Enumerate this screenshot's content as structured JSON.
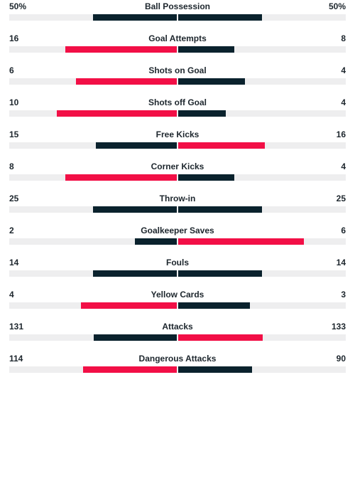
{
  "colors": {
    "leading": "#f20f46",
    "trailing": "#0a222d",
    "track": "#eeeeef"
  },
  "stats": [
    {
      "label": "Ball Possession",
      "home": "50%",
      "away": "50%",
      "home_value": 50,
      "away_value": 50
    },
    {
      "label": "Goal Attempts",
      "home": "16",
      "away": "8",
      "home_value": 16,
      "away_value": 8
    },
    {
      "label": "Shots on Goal",
      "home": "6",
      "away": "4",
      "home_value": 6,
      "away_value": 4
    },
    {
      "label": "Shots off Goal",
      "home": "10",
      "away": "4",
      "home_value": 10,
      "away_value": 4
    },
    {
      "label": "Free Kicks",
      "home": "15",
      "away": "16",
      "home_value": 15,
      "away_value": 16
    },
    {
      "label": "Corner Kicks",
      "home": "8",
      "away": "4",
      "home_value": 8,
      "away_value": 4
    },
    {
      "label": "Throw-in",
      "home": "25",
      "away": "25",
      "home_value": 25,
      "away_value": 25
    },
    {
      "label": "Goalkeeper Saves",
      "home": "2",
      "away": "6",
      "home_value": 2,
      "away_value": 6
    },
    {
      "label": "Fouls",
      "home": "14",
      "away": "14",
      "home_value": 14,
      "away_value": 14
    },
    {
      "label": "Yellow Cards",
      "home": "4",
      "away": "3",
      "home_value": 4,
      "away_value": 3
    },
    {
      "label": "Attacks",
      "home": "131",
      "away": "133",
      "home_value": 131,
      "away_value": 133
    },
    {
      "label": "Dangerous Attacks",
      "home": "114",
      "away": "90",
      "home_value": 114,
      "away_value": 90
    }
  ]
}
